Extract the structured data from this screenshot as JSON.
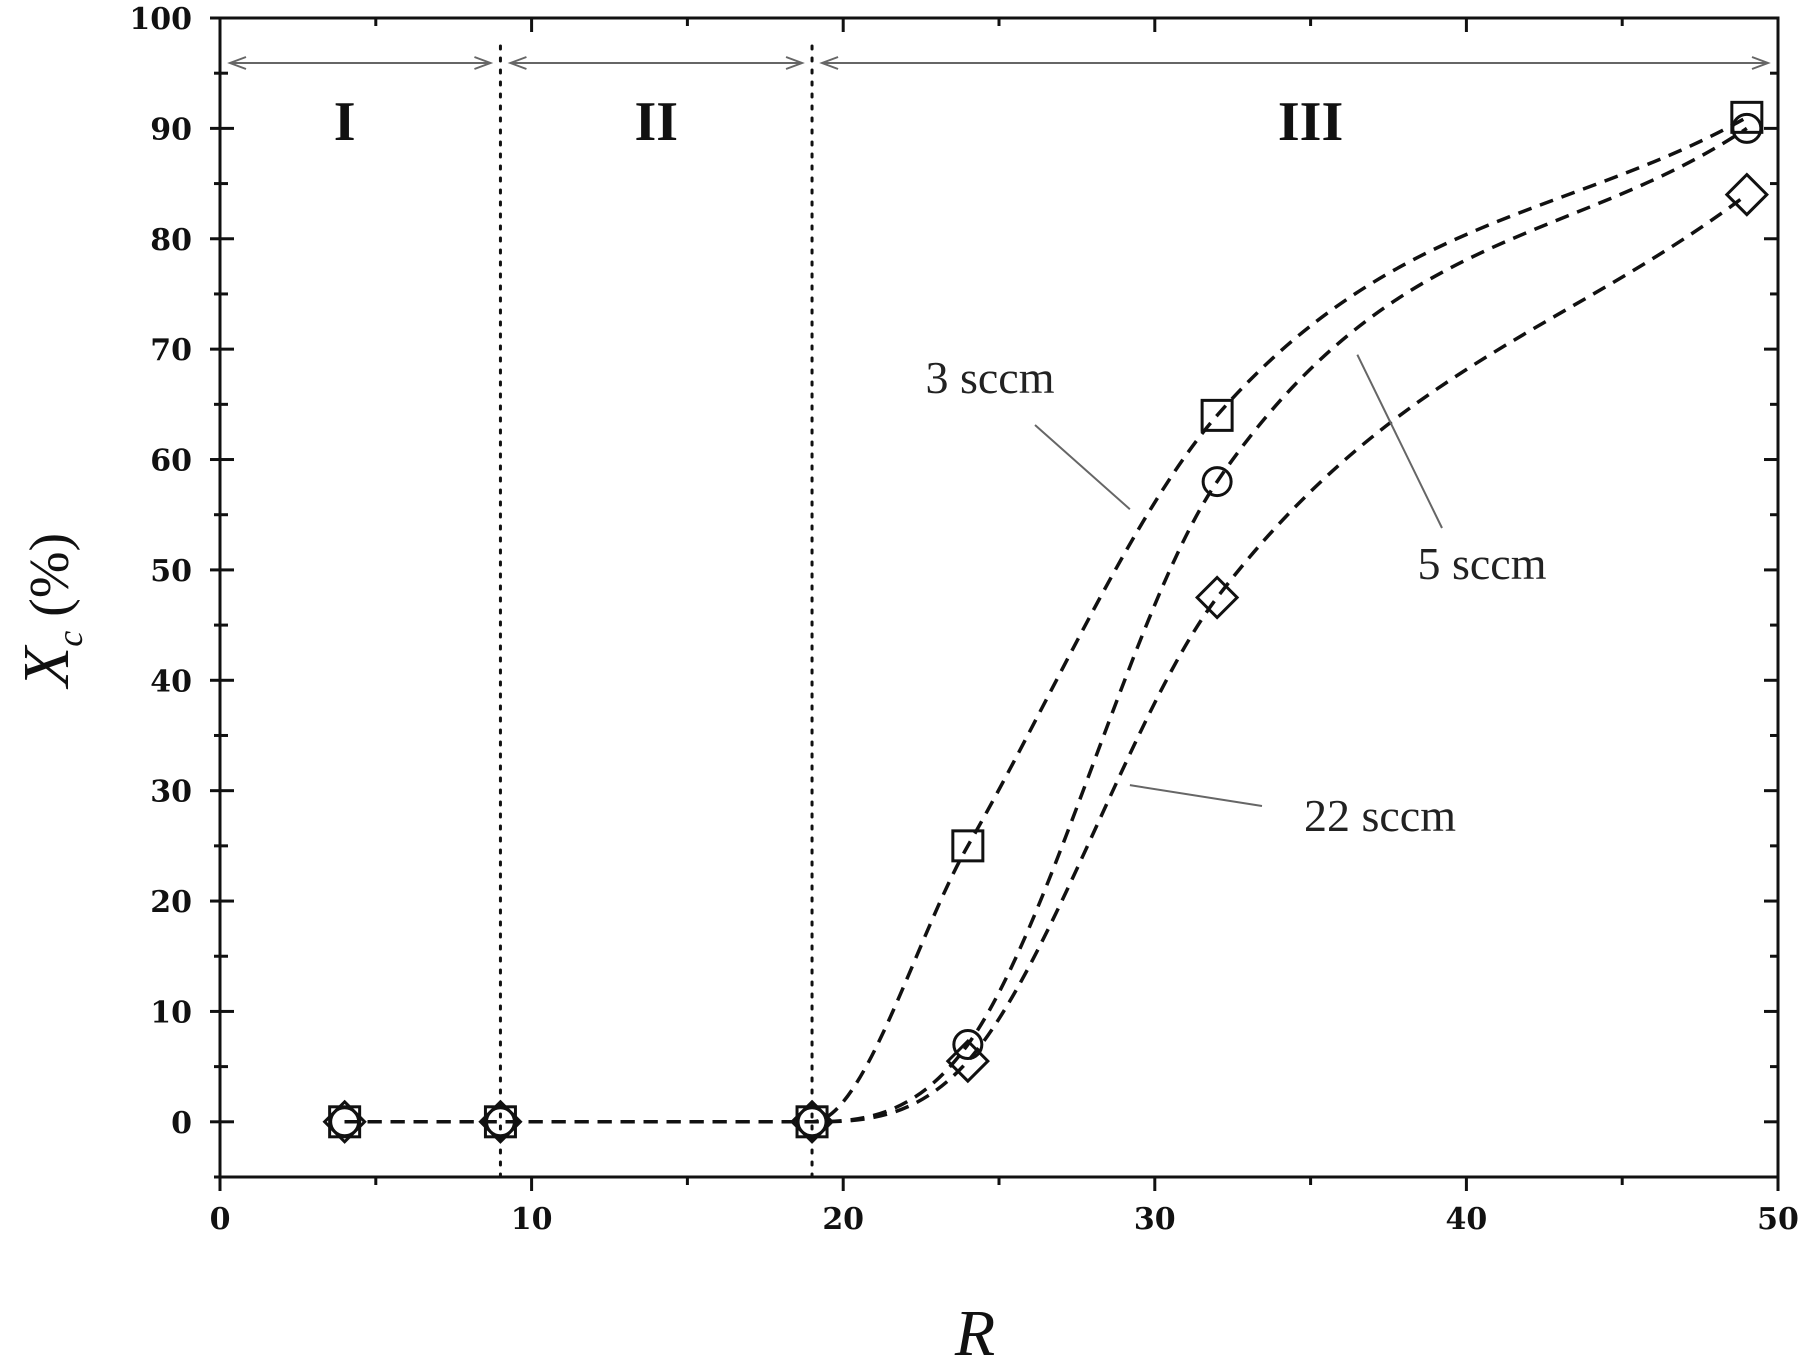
{
  "chart_data": {
    "type": "scatter",
    "xlabel": "R",
    "ylabel": {
      "symbol": "X",
      "subscript": "c",
      "unit": "(%)"
    },
    "xlim": [
      0,
      50
    ],
    "ylim": [
      -5,
      100
    ],
    "x_ticks": [
      0,
      10,
      20,
      30,
      40,
      50
    ],
    "y_ticks": [
      0,
      10,
      20,
      30,
      40,
      50,
      60,
      70,
      80,
      90,
      100
    ],
    "grid": false,
    "regions": [
      {
        "label": "I",
        "from": 0,
        "to": 9
      },
      {
        "label": "II",
        "from": 9,
        "to": 19
      },
      {
        "label": "III",
        "from": 19,
        "to": 50
      }
    ],
    "region_boundaries": [
      9,
      19
    ],
    "series": [
      {
        "name": "3 sccm",
        "marker": "square",
        "x": [
          4,
          9,
          19,
          24,
          32,
          49
        ],
        "y": [
          0,
          0,
          0,
          25,
          64,
          91
        ]
      },
      {
        "name": "5 sccm",
        "marker": "circle",
        "x": [
          4,
          9,
          19,
          24,
          32,
          49
        ],
        "y": [
          0,
          0,
          0,
          7,
          58,
          90
        ]
      },
      {
        "name": "22 sccm",
        "marker": "diamond",
        "x": [
          4,
          9,
          19,
          24,
          32,
          49
        ],
        "y": [
          0,
          0,
          0,
          5.5,
          47.5,
          84
        ]
      }
    ],
    "curve_style": "dashed"
  }
}
